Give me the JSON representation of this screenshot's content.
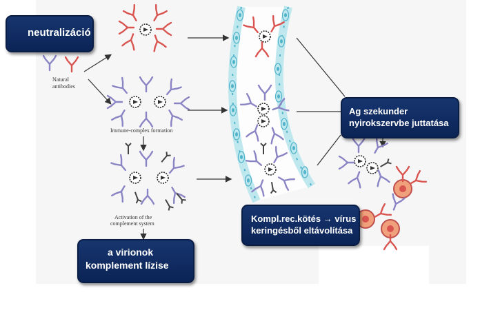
{
  "callouts": {
    "neutralization": "neutralizáció",
    "secondary_line1": "Ag szekunder",
    "secondary_line2": "nyirokszervbe  juttatása",
    "complement_line1": "Kompl.rec.kötés → vírus",
    "complement_line2": "keringésből eltávolítása",
    "lysis_line1": "a virionok",
    "lysis_line2": "komplement  lízise"
  },
  "figure_labels": {
    "natural_line1": "Natural",
    "natural_line2": "antibodies",
    "immune_complex": "Immune-complex formation",
    "activation_line1": "Activation of the",
    "activation_line2": "complement system"
  },
  "colors": {
    "antibody_red": "#d9534f",
    "antibody_blue": "#8a84c4",
    "vessel_fill": "#bfe7ee",
    "vessel_cell": "#4fb3c9",
    "callout_bg": "#0f2a62",
    "cell_orange": "#f0a07a"
  }
}
